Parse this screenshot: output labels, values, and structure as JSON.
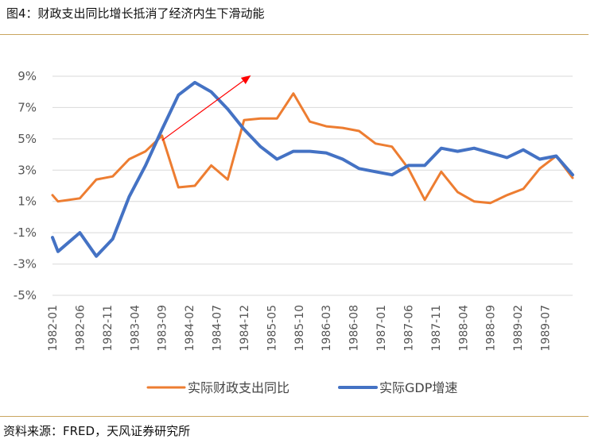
{
  "title": "图4：财政支出同比增长抵消了经济内生下滑动能",
  "source": "资料来源：FRED，天风证券研究所",
  "colors": {
    "fiscal": "#ED7D31",
    "gdp": "#4472C4",
    "arrow": "#FF0000",
    "gridline": "#d9d9d9",
    "rule": "#c9a55f"
  },
  "chart_data": {
    "type": "line",
    "x": [
      "1982-01",
      "1982-02",
      "1982-03",
      "1982-04",
      "1982-05",
      "1982-06",
      "1982-07",
      "1982-08",
      "1982-09",
      "1982-10",
      "1982-11",
      "1982-12",
      "1983-01",
      "1983-02",
      "1983-03",
      "1983-04",
      "1983-05",
      "1983-06",
      "1983-07",
      "1983-08",
      "1983-09",
      "1983-10",
      "1983-11",
      "1983-12",
      "1984-01",
      "1984-02",
      "1984-03",
      "1984-04",
      "1984-05",
      "1984-06",
      "1984-07",
      "1984-08",
      "1984-09",
      "1984-10",
      "1984-11",
      "1984-12",
      "1985-01",
      "1985-02",
      "1985-03",
      "1985-04",
      "1985-05",
      "1985-06",
      "1985-07",
      "1985-08",
      "1985-09",
      "1985-10",
      "1985-11",
      "1985-12",
      "1986-01",
      "1986-02",
      "1986-03",
      "1986-04",
      "1986-05",
      "1986-06",
      "1986-07",
      "1986-08",
      "1986-09",
      "1986-10",
      "1986-11",
      "1986-12",
      "1987-01",
      "1987-02",
      "1987-03",
      "1987-04",
      "1987-05",
      "1987-06",
      "1987-07",
      "1987-08",
      "1987-09",
      "1987-10",
      "1987-11",
      "1987-12",
      "1988-01",
      "1988-02",
      "1988-03",
      "1988-04",
      "1988-05",
      "1988-06",
      "1988-07",
      "1988-08",
      "1988-09",
      "1988-10",
      "1988-11",
      "1988-12",
      "1989-01",
      "1989-02",
      "1989-03",
      "1989-04",
      "1989-05",
      "1989-06",
      "1989-07",
      "1989-08",
      "1989-09",
      "1989-10",
      "1989-11",
      "1989-12"
    ],
    "x_tick_labels": [
      "1982-01",
      "1982-06",
      "1982-11",
      "1983-04",
      "1983-09",
      "1984-02",
      "1984-07",
      "1984-12",
      "1985-05",
      "1985-10",
      "1986-03",
      "1986-08",
      "1987-01",
      "1987-06",
      "1987-11",
      "1988-04",
      "1988-09",
      "1989-02",
      "1989-07"
    ],
    "y_ticks": [
      9,
      7,
      5,
      3,
      1,
      -1,
      -3,
      -5
    ],
    "y_tick_labels": [
      "9%",
      "7%",
      "5%",
      "3%",
      "1%",
      "-1%",
      "-3%",
      "-5%"
    ],
    "ylim": [
      -5,
      9
    ],
    "y_unit": "%",
    "gridlines": "horizontal",
    "legend_position": "bottom",
    "series": [
      {
        "name": "实际财政支出同比",
        "color": "#ED7D31",
        "points": [
          [
            "1982-01",
            1.4
          ],
          [
            "1982-02",
            1.0
          ],
          [
            "1982-06",
            1.2
          ],
          [
            "1982-09",
            2.4
          ],
          [
            "1982-12",
            2.6
          ],
          [
            "1983-03",
            3.7
          ],
          [
            "1983-06",
            4.2
          ],
          [
            "1983-09",
            5.2
          ],
          [
            "1983-12",
            1.9
          ],
          [
            "1984-03",
            2.0
          ],
          [
            "1984-06",
            3.3
          ],
          [
            "1984-09",
            2.4
          ],
          [
            "1984-12",
            6.2
          ],
          [
            "1985-03",
            6.3
          ],
          [
            "1985-06",
            6.3
          ],
          [
            "1985-09",
            7.9
          ],
          [
            "1985-12",
            6.1
          ],
          [
            "1986-03",
            5.8
          ],
          [
            "1986-06",
            5.7
          ],
          [
            "1986-09",
            5.5
          ],
          [
            "1986-12",
            4.7
          ],
          [
            "1987-03",
            4.5
          ],
          [
            "1987-06",
            3.1
          ],
          [
            "1987-09",
            1.1
          ],
          [
            "1987-12",
            2.9
          ],
          [
            "1988-03",
            1.6
          ],
          [
            "1988-06",
            1.0
          ],
          [
            "1988-09",
            0.9
          ],
          [
            "1988-12",
            1.4
          ],
          [
            "1989-03",
            1.8
          ],
          [
            "1989-06",
            3.1
          ],
          [
            "1989-09",
            3.9
          ],
          [
            "1989-12",
            2.5
          ]
        ]
      },
      {
        "name": "实际GDP增速",
        "color": "#4472C4",
        "points": [
          [
            "1982-01",
            -1.3
          ],
          [
            "1982-02",
            -2.2
          ],
          [
            "1982-06",
            -1.0
          ],
          [
            "1982-09",
            -2.5
          ],
          [
            "1982-12",
            -1.4
          ],
          [
            "1983-03",
            1.3
          ],
          [
            "1983-06",
            3.3
          ],
          [
            "1983-09",
            5.6
          ],
          [
            "1983-12",
            7.8
          ],
          [
            "1984-03",
            8.6
          ],
          [
            "1984-06",
            8.0
          ],
          [
            "1984-09",
            6.9
          ],
          [
            "1984-12",
            5.6
          ],
          [
            "1985-03",
            4.5
          ],
          [
            "1985-06",
            3.7
          ],
          [
            "1985-09",
            4.2
          ],
          [
            "1985-12",
            4.2
          ],
          [
            "1986-03",
            4.1
          ],
          [
            "1986-06",
            3.7
          ],
          [
            "1986-09",
            3.1
          ],
          [
            "1986-12",
            2.9
          ],
          [
            "1987-03",
            2.7
          ],
          [
            "1987-06",
            3.3
          ],
          [
            "1987-09",
            3.3
          ],
          [
            "1987-12",
            4.4
          ],
          [
            "1988-03",
            4.2
          ],
          [
            "1988-06",
            4.4
          ],
          [
            "1988-09",
            4.1
          ],
          [
            "1988-12",
            3.8
          ],
          [
            "1989-03",
            4.3
          ],
          [
            "1989-06",
            3.7
          ],
          [
            "1989-09",
            3.9
          ],
          [
            "1989-12",
            2.7
          ]
        ]
      }
    ],
    "annotation": {
      "type": "arrow",
      "from": [
        "1983-09",
        4.9
      ],
      "to": [
        "1985-01",
        9.0
      ]
    }
  }
}
